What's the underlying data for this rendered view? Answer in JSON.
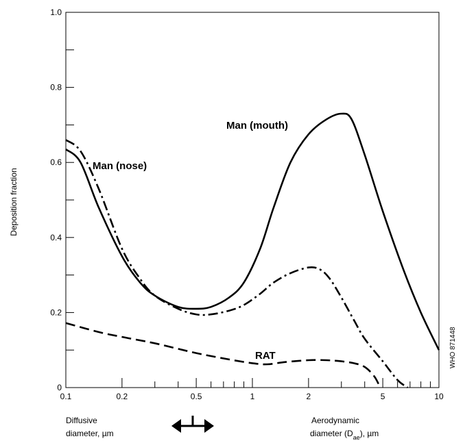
{
  "chart_data": {
    "type": "line",
    "ylabel": "Deposition fraction",
    "ylim": [
      0,
      1.0
    ],
    "xlim": [
      0.1,
      10
    ],
    "x_scale": "log",
    "y_tick_labels": [
      "0",
      "0.2",
      "0.4",
      "0.6",
      "0.8",
      "1.0"
    ],
    "x_tick_labels": [
      "0.1",
      "0.2",
      "0.5",
      "1",
      "2",
      "5",
      "10"
    ],
    "x_label_left": [
      "Diffusive",
      "diameter, µm"
    ],
    "x_label_right": {
      "line1": "Aerodynamic",
      "line2_prefix": "diameter (D",
      "line2_sub": "ae",
      "line2_suffix": "), µm"
    },
    "grid": false,
    "legend": "none",
    "series": [
      {
        "name": "Man (mouth)",
        "style": "solid",
        "x": [
          0.1,
          0.12,
          0.15,
          0.2,
          0.25,
          0.3,
          0.4,
          0.5,
          0.6,
          0.75,
          0.9,
          1.1,
          1.3,
          1.6,
          2.0,
          2.5,
          3.0,
          3.4,
          4.0,
          5.0,
          6.5,
          8.0,
          10.0
        ],
        "values": [
          0.635,
          0.6,
          0.48,
          0.35,
          0.28,
          0.245,
          0.215,
          0.21,
          0.215,
          0.24,
          0.28,
          0.37,
          0.48,
          0.6,
          0.675,
          0.715,
          0.73,
          0.715,
          0.62,
          0.47,
          0.31,
          0.2,
          0.1
        ]
      },
      {
        "name": "Man (nose)",
        "style": "dash-dot",
        "x": [
          0.1,
          0.12,
          0.15,
          0.2,
          0.25,
          0.3,
          0.4,
          0.5,
          0.6,
          0.75,
          0.9,
          1.1,
          1.3,
          1.6,
          2.0,
          2.3,
          2.6,
          3.0,
          3.5,
          4.0,
          5.0,
          6.0,
          6.8
        ],
        "values": [
          0.66,
          0.63,
          0.53,
          0.37,
          0.29,
          0.245,
          0.21,
          0.195,
          0.195,
          0.205,
          0.22,
          0.25,
          0.28,
          0.305,
          0.32,
          0.315,
          0.29,
          0.24,
          0.18,
          0.13,
          0.07,
          0.02,
          0.0
        ]
      },
      {
        "name": "RAT",
        "style": "dashed",
        "x": [
          0.1,
          0.15,
          0.2,
          0.3,
          0.5,
          0.75,
          1.0,
          1.2,
          1.5,
          2.0,
          2.5,
          3.0,
          3.5,
          4.0,
          4.5,
          4.85
        ],
        "values": [
          0.172,
          0.148,
          0.135,
          0.118,
          0.092,
          0.075,
          0.065,
          0.062,
          0.068,
          0.073,
          0.073,
          0.07,
          0.065,
          0.055,
          0.03,
          0.0
        ]
      }
    ],
    "annotations": {
      "mouth_label": "Man (mouth)",
      "nose_label": "Man (nose)",
      "rat_label": "RAT",
      "side_code": "WHO 871448"
    }
  }
}
